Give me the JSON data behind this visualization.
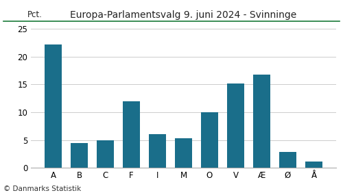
{
  "title": "Europa-Parlamentsvalg 9. juni 2024 - Svinninge",
  "categories": [
    "A",
    "B",
    "C",
    "F",
    "I",
    "M",
    "O",
    "V",
    "Æ",
    "Ø",
    "Å"
  ],
  "values": [
    22.2,
    4.5,
    4.9,
    12.0,
    6.1,
    5.3,
    10.0,
    15.2,
    16.8,
    2.9,
    1.1
  ],
  "bar_color": "#1a6e8a",
  "ylim": [
    0,
    26
  ],
  "yticks": [
    0,
    5,
    10,
    15,
    20,
    25
  ],
  "pct_label": "Pct.",
  "copyright": "© Danmarks Statistik",
  "title_color": "#222222",
  "grid_color": "#cccccc",
  "title_line_color": "#1a7a3a",
  "background_color": "#ffffff",
  "title_fontsize": 10,
  "tick_fontsize": 8.5,
  "copyright_fontsize": 7.5
}
